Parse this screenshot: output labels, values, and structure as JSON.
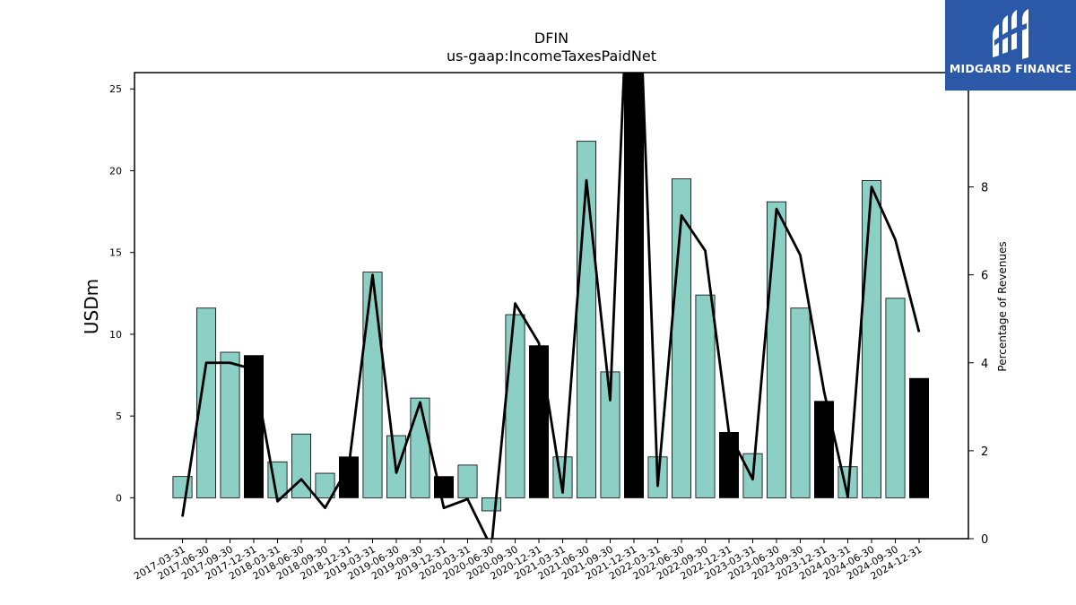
{
  "logo": {
    "text": "MIDGARD FINANCE",
    "background": "#2b59a8"
  },
  "chart_data": {
    "type": "bar",
    "title": "DFIN",
    "subtitle": "us-gaap:IncomeTaxesPaidNet",
    "ylabel": "USDm",
    "y2label": "Percentage of Revenues",
    "ylim": [
      -2.5,
      26
    ],
    "y2lim": [
      0,
      10.6
    ],
    "yticks": [
      0,
      5,
      10,
      15,
      20,
      25
    ],
    "y2ticks": [
      0,
      2,
      4,
      6,
      8
    ],
    "categories": [
      "2017-03-31",
      "2017-06-30",
      "2017-09-30",
      "2017-12-31",
      "2018-03-31",
      "2018-06-30",
      "2018-09-30",
      "2018-12-31",
      "2019-03-31",
      "2019-06-30",
      "2019-09-30",
      "2019-12-31",
      "2020-03-31",
      "2020-06-30",
      "2020-09-30",
      "2020-12-31",
      "2021-03-31",
      "2021-06-30",
      "2021-09-30",
      "2021-12-31",
      "2022-03-31",
      "2022-06-30",
      "2022-09-30",
      "2022-12-31",
      "2023-03-31",
      "2023-06-30",
      "2023-09-30",
      "2023-12-31",
      "2024-03-31",
      "2024-06-30",
      "2024-09-30",
      "2024-12-31"
    ],
    "series": [
      {
        "type": "bar",
        "axis": "left",
        "values": [
          1.3,
          11.6,
          8.9,
          8.7,
          2.2,
          3.9,
          1.5,
          2.5,
          13.8,
          3.8,
          6.1,
          1.3,
          2.0,
          -0.8,
          11.2,
          9.3,
          2.5,
          21.8,
          7.7,
          26.5,
          2.5,
          19.5,
          12.4,
          4.0,
          2.7,
          18.1,
          11.6,
          5.9,
          1.9,
          19.4,
          12.2,
          7.3
        ]
      },
      {
        "type": "line",
        "axis": "right",
        "values": [
          0.5,
          4.0,
          4.0,
          3.85,
          0.85,
          1.35,
          0.7,
          1.65,
          6.0,
          1.5,
          3.1,
          0.7,
          0.9,
          -0.2,
          5.35,
          4.45,
          1.05,
          8.15,
          3.15,
          16.0,
          1.2,
          7.35,
          6.55,
          2.4,
          1.35,
          7.5,
          6.45,
          3.35,
          0.95,
          8.0,
          6.8,
          4.7
        ]
      }
    ],
    "highlight_quarter": "12-31",
    "colors": {
      "bar": "#8ccfc4",
      "bar_highlight": "#000000",
      "line": "#000000",
      "edge": "#000000"
    },
    "grid": false,
    "legend": "none"
  }
}
